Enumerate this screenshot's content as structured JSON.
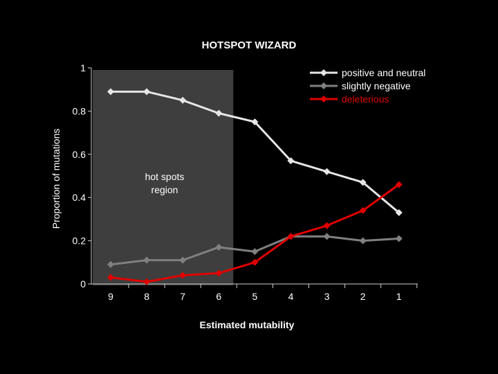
{
  "chart_data": {
    "type": "line",
    "title": "HOTSPOT WIZARD",
    "xlabel": "Estimated mutability",
    "ylabel": "Proportion of mutations",
    "categories": [
      "9",
      "8",
      "7",
      "6",
      "5",
      "4",
      "3",
      "2",
      "1"
    ],
    "yticks": [
      "1",
      "0.8",
      "0.6",
      "0.4",
      "0.2",
      "0"
    ],
    "ylim": [
      0,
      1
    ],
    "grid": false,
    "legend_position": "top-right",
    "series": [
      {
        "name": "positive and neutral",
        "color": "#e6e6e6",
        "marker": "diamond",
        "values": [
          0.89,
          0.89,
          0.85,
          0.79,
          0.75,
          0.57,
          0.52,
          0.47,
          0.33
        ]
      },
      {
        "name": "slightly negative",
        "color": "#808080",
        "marker": "diamond",
        "values": [
          0.09,
          0.11,
          0.11,
          0.17,
          0.15,
          0.22,
          0.22,
          0.2,
          0.21
        ]
      },
      {
        "name": "deleterious",
        "color": "#e00000",
        "marker": "diamond",
        "values": [
          0.03,
          0.01,
          0.04,
          0.05,
          0.1,
          0.22,
          0.27,
          0.34,
          0.46
        ]
      }
    ],
    "annotations": [
      {
        "text_lines": [
          "hot spots",
          "region"
        ]
      }
    ],
    "highlight_region": {
      "from": "9",
      "to": "6",
      "color": "#3e3e3e"
    }
  }
}
